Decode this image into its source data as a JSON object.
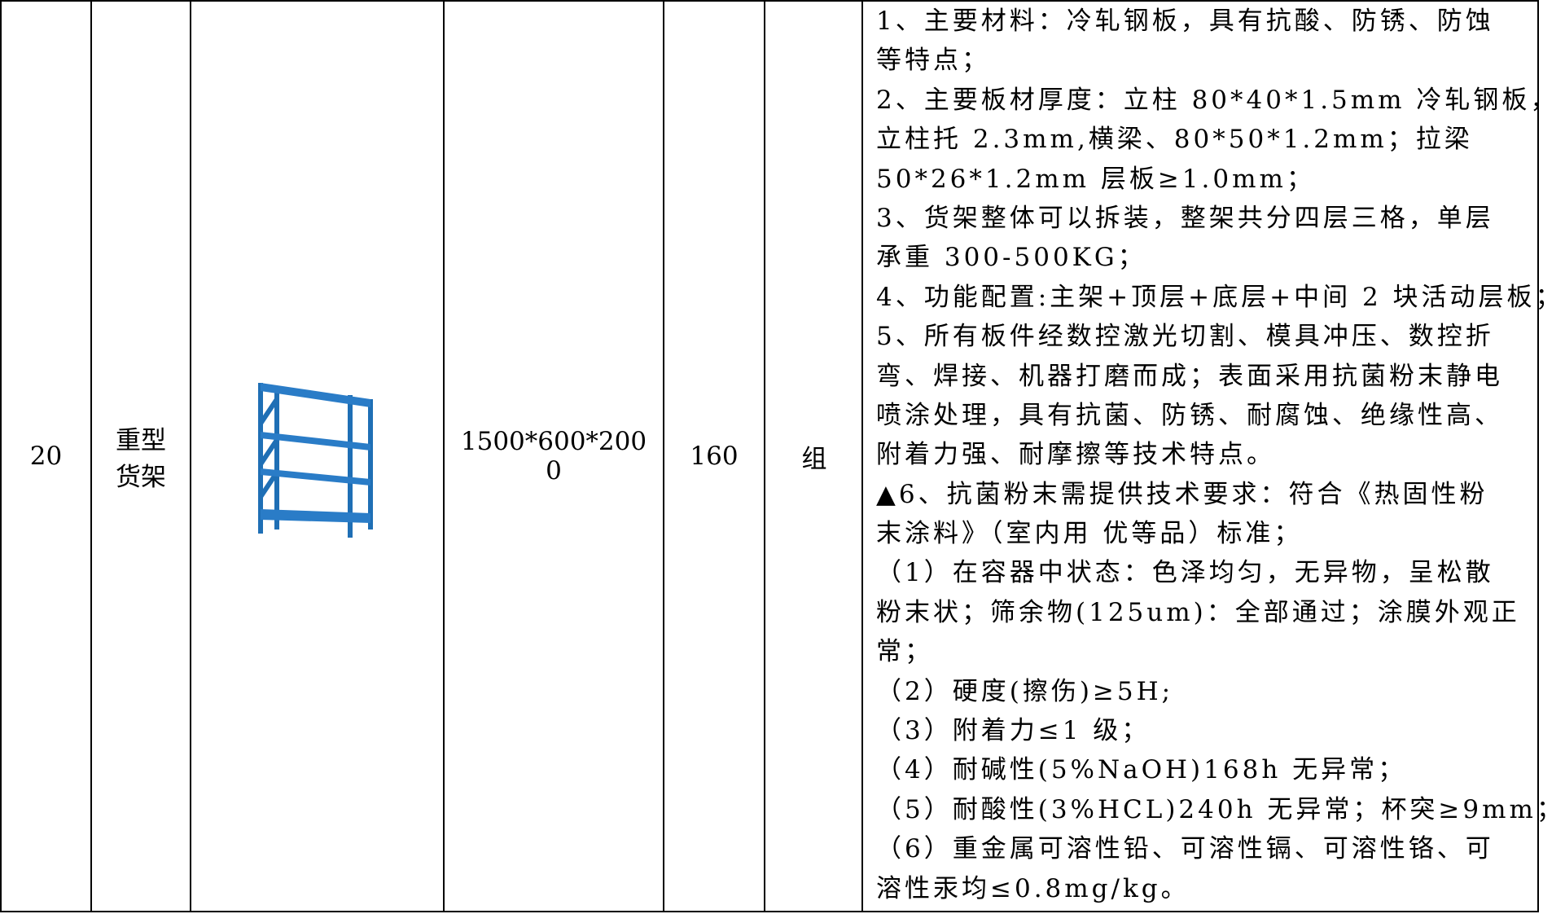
{
  "table": {
    "rows": [
      {
        "number": "20",
        "name_lines": [
          "重型",
          "货架"
        ],
        "size_lines": [
          "1500*600*200",
          "0"
        ],
        "quantity": "160",
        "unit": "组",
        "description_lines": [
          "1、主要材料：冷轧钢板，具有抗酸、防锈、防蚀",
          "等特点；",
          "2、主要板材厚度：立柱 80*40*1.5mm 冷轧钢板，",
          "立柱托 2.3mm,横梁、80*50*1.2mm；拉梁",
          "50*26*1.2mm 层板≥1.0mm；",
          "3、货架整体可以拆装，整架共分四层三格，单层",
          "承重 300-500KG；",
          "4、功能配置:主架+顶层+底层+中间 2 块活动层板；",
          "5、所有板件经数控激光切割、模具冲压、数控折",
          "弯、焊接、机器打磨而成；表面采用抗菌粉末静电",
          "喷涂处理，具有抗菌、防锈、耐腐蚀、绝缘性高、",
          "附着力强、耐摩擦等技术特点。",
          "▲6、抗菌粉末需提供技术要求：符合《热固性粉",
          "末涂料》（室内用 优等品）标准；",
          "（1）在容器中状态：色泽均匀，无异物，呈松散",
          "粉末状；筛余物(125um)：全部通过；涂膜外观正",
          "常；",
          "（2）硬度(擦伤)≥5H;",
          "（3）附着力≤1 级；",
          "（4）耐碱性(5%NaOH)168h 无异常；",
          "（5）耐酸性(3%HCL)240h 无异常；杯突≥9mm；",
          "（6）重金属可溶性铅、可溶性镉、可溶性铬、可",
          "溶性汞均≤0.8mg/kg。"
        ]
      }
    ]
  }
}
